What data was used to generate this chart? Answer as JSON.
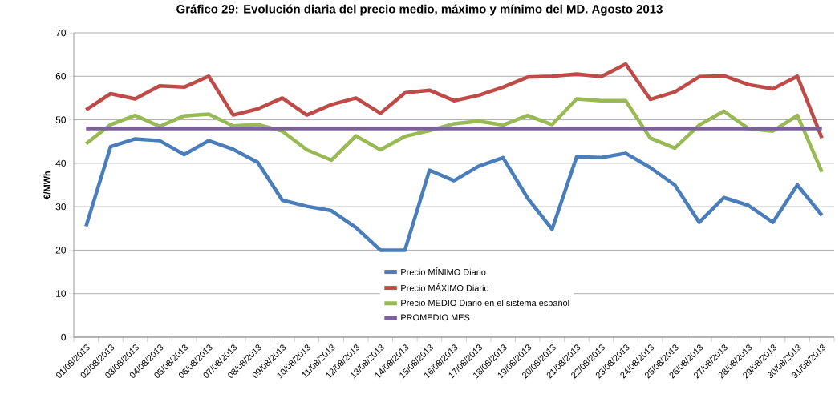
{
  "chart_data": {
    "type": "line",
    "title": "Gráfico 29:        Evolución diaria del precio medio, máximo y mínimo del MD. Agosto 2013",
    "ylabel": "€/MWh",
    "categories": [
      "01/08/2013",
      "02/08/2013",
      "03/08/2013",
      "04/08/2013",
      "05/08/2013",
      "06/08/2013",
      "07/08/2013",
      "08/08/2013",
      "09/08/2013",
      "10/08/2013",
      "11/08/2013",
      "12/08/2013",
      "13/08/2013",
      "14/08/2013",
      "15/08/2013",
      "16/08/2013",
      "17/08/2013",
      "18/08/2013",
      "19/08/2013",
      "20/08/2013",
      "21/08/2013",
      "22/08/2013",
      "23/08/2013",
      "24/08/2013",
      "25/08/2013",
      "26/08/2013",
      "27/08/2013",
      "28/08/2013",
      "29/08/2013",
      "30/08/2013",
      "31/08/2013"
    ],
    "series": [
      {
        "name": "Precio MÍNIMO  Diario",
        "color": "#4a7ebb",
        "values": [
          25.5,
          43.8,
          45.6,
          45.2,
          42,
          45.2,
          43.2,
          40.2,
          31.5,
          30.1,
          29.1,
          25.2,
          20,
          20,
          38.4,
          36,
          39.3,
          41.3,
          32,
          24.8,
          41.5,
          41.3,
          42.3,
          39,
          35,
          26.4,
          32.1,
          30.3,
          26.4,
          35,
          28
        ]
      },
      {
        "name": "Precio MÁXIMO Diario",
        "color": "#be4b48",
        "values": [
          52.3,
          56,
          54.8,
          57.8,
          57.5,
          60,
          51.1,
          52.5,
          55,
          51.1,
          53.5,
          55,
          51.5,
          56.2,
          56.8,
          54.4,
          55.6,
          57.5,
          59.8,
          60,
          60.5,
          59.9,
          62.8,
          54.7,
          56.4,
          59.9,
          60.1,
          58.1,
          57.1,
          60,
          45.8
        ]
      },
      {
        "name": "Precio MEDIO Diario  en el sistema  español",
        "color": "#98b954",
        "values": [
          44.5,
          48.9,
          51,
          48.5,
          50.9,
          51.3,
          48.6,
          48.9,
          47.4,
          43.1,
          40.7,
          46.3,
          43.1,
          46.2,
          47.5,
          49.1,
          49.7,
          48.8,
          51,
          48.9,
          54.8,
          54.4,
          54.4,
          45.8,
          43.5,
          48.8,
          52,
          48,
          47.4,
          51,
          38
        ]
      },
      {
        "name": "PROMEDIO MES",
        "color": "#7d60a0",
        "values": [
          48,
          48,
          48,
          48,
          48,
          48,
          48,
          48,
          48,
          48,
          48,
          48,
          48,
          48,
          48,
          48,
          48,
          48,
          48,
          48,
          48,
          48,
          48,
          48,
          48,
          48,
          48,
          48,
          48,
          48,
          48
        ]
      }
    ],
    "ylim": [
      0,
      70
    ],
    "yticks": [
      0,
      10,
      20,
      30,
      40,
      50,
      60,
      70
    ],
    "grid": "y",
    "legend": "bottom",
    "marker": "none",
    "line_style": "solid"
  }
}
